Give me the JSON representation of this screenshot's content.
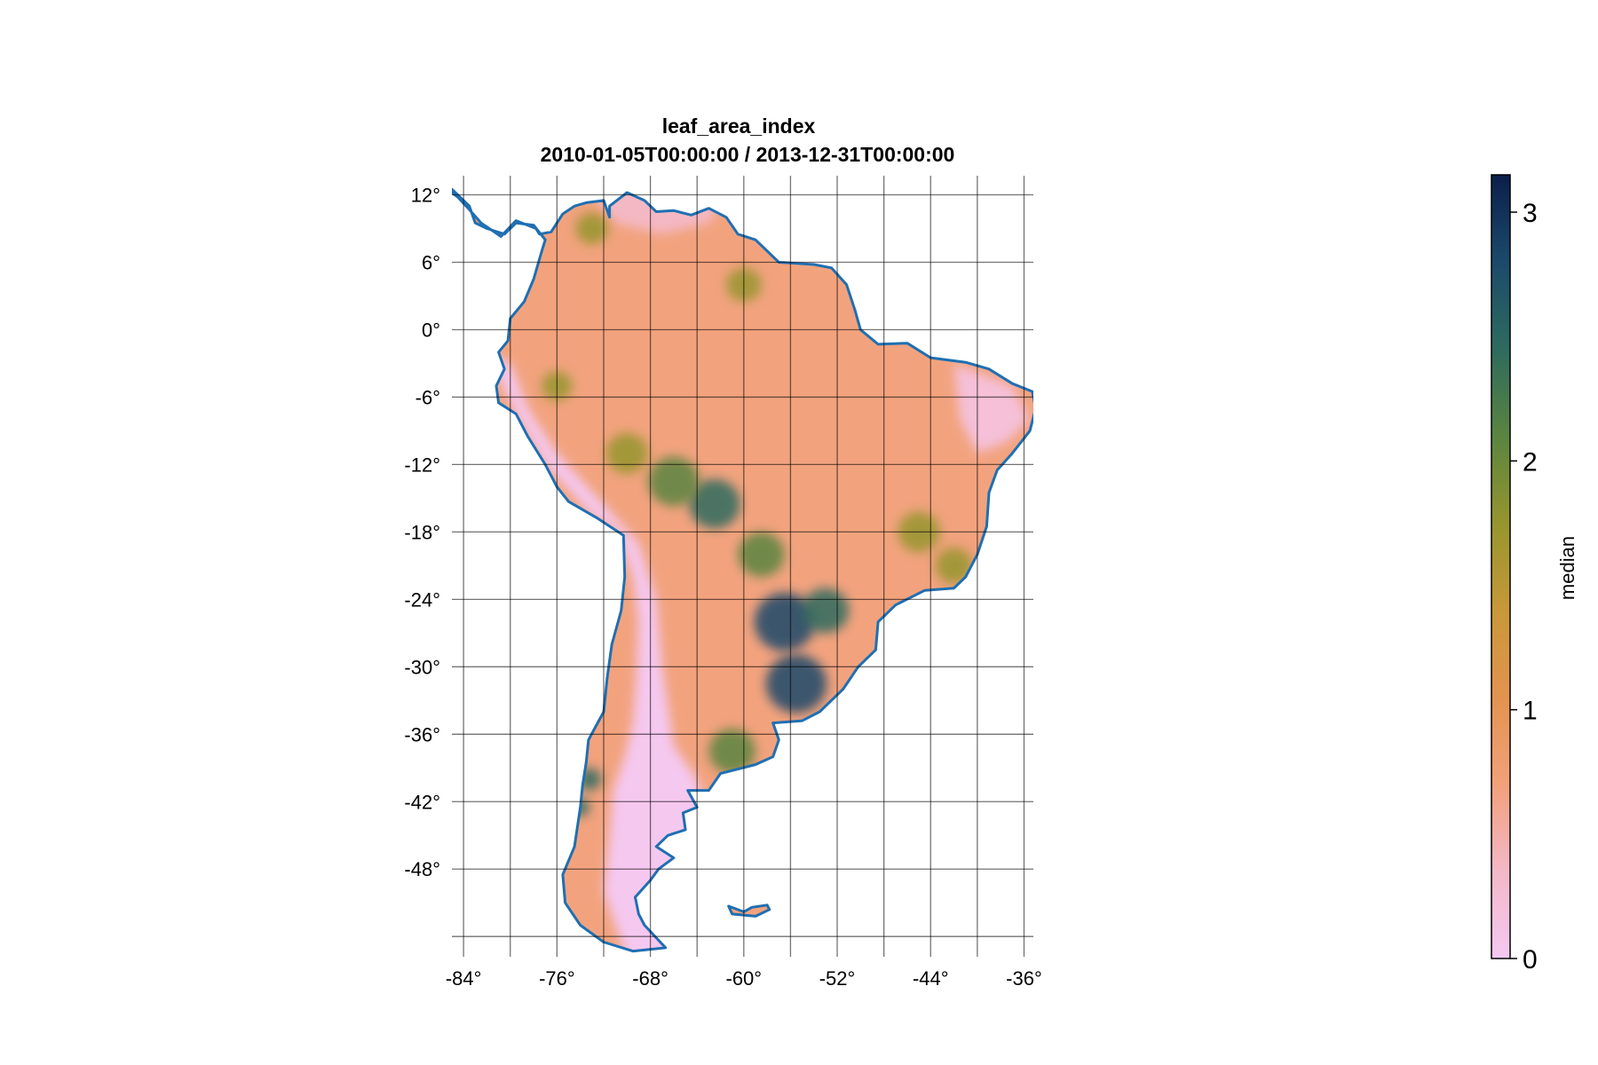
{
  "chart_data": {
    "type": "heatmap",
    "title": "leaf_area_index",
    "subtitle": "2010-01-05T00:00:00 / 2013-12-31T00:00:00",
    "x_tick_labels": [
      "-84°",
      "-76°",
      "-68°",
      "-60°",
      "-52°",
      "-44°",
      "-36°"
    ],
    "x_ticks": [
      -84,
      -80,
      -76,
      -72,
      -68,
      -64,
      -60,
      -56,
      -52,
      -48,
      -44,
      -40,
      -36
    ],
    "y_tick_labels": [
      "12°",
      "6°",
      "0°",
      "-6°",
      "-12°",
      "-18°",
      "-24°",
      "-30°",
      "-36°",
      "-42°",
      "-48°"
    ],
    "y_ticks": [
      12,
      6,
      0,
      -6,
      -12,
      -18,
      -24,
      -30,
      -36,
      -42,
      -48,
      -54
    ],
    "xlim": [
      -85,
      -35.2
    ],
    "ylim": [
      -55.8,
      13.7
    ],
    "grid": true,
    "colorbar": {
      "label": "median",
      "range": [
        0,
        3.15
      ],
      "tick_values": [
        0,
        1,
        2,
        3
      ],
      "tick_labels": [
        "0",
        "1",
        "2",
        "3"
      ],
      "colormap": [
        "#f5c8f0",
        "#f3b8c8",
        "#f3a07a",
        "#e3934f",
        "#c89838",
        "#96952e",
        "#5a8440",
        "#2e6b5e",
        "#1b4a6b",
        "#0b1f4a"
      ]
    },
    "land_base_color": "#f2a37e",
    "dry_color": "#f5c8f0",
    "coastline_color": "#1f6fb2",
    "coastline": [
      [
        -85,
        12.5
      ],
      [
        -83.5,
        11.0
      ],
      [
        -83.0,
        9.5
      ],
      [
        -82.0,
        9.0
      ],
      [
        -80.5,
        8.5
      ],
      [
        -79.5,
        9.5
      ],
      [
        -78.0,
        9.3
      ],
      [
        -77.0,
        8.0
      ],
      [
        -77.3,
        7.0
      ],
      [
        -78.0,
        4.5
      ],
      [
        -78.8,
        2.5
      ],
      [
        -80.0,
        1.0
      ],
      [
        -80.2,
        -1.0
      ],
      [
        -81.0,
        -2.0
      ],
      [
        -80.5,
        -3.5
      ],
      [
        -81.2,
        -5.0
      ],
      [
        -81.0,
        -6.5
      ],
      [
        -79.5,
        -7.5
      ],
      [
        -78.5,
        -9.5
      ],
      [
        -77.0,
        -12.0
      ],
      [
        -76.0,
        -14.0
      ],
      [
        -75.0,
        -15.3
      ],
      [
        -72.5,
        -16.8
      ],
      [
        -70.3,
        -18.3
      ],
      [
        -70.2,
        -22.0
      ],
      [
        -70.5,
        -25.0
      ],
      [
        -71.3,
        -28.0
      ],
      [
        -71.7,
        -31.0
      ],
      [
        -72.0,
        -34.0
      ],
      [
        -73.3,
        -36.5
      ],
      [
        -73.5,
        -38.5
      ],
      [
        -73.8,
        -40.5
      ],
      [
        -74.0,
        -42.5
      ],
      [
        -74.5,
        -46.0
      ],
      [
        -75.5,
        -48.5
      ],
      [
        -75.3,
        -51.0
      ],
      [
        -74.0,
        -53.0
      ],
      [
        -72.0,
        -54.5
      ],
      [
        -69.5,
        -55.3
      ],
      [
        -66.7,
        -55.0
      ],
      [
        -68.5,
        -53.0
      ],
      [
        -69.0,
        -52.0
      ],
      [
        -69.3,
        -50.5
      ],
      [
        -68.0,
        -49.0
      ],
      [
        -67.3,
        -48.0
      ],
      [
        -66.0,
        -47.0
      ],
      [
        -67.5,
        -46.0
      ],
      [
        -66.5,
        -45.0
      ],
      [
        -65.0,
        -44.5
      ],
      [
        -65.2,
        -43.0
      ],
      [
        -64.0,
        -42.5
      ],
      [
        -64.8,
        -41.0
      ],
      [
        -63.0,
        -41.0
      ],
      [
        -62.0,
        -39.5
      ],
      [
        -59.0,
        -38.7
      ],
      [
        -57.5,
        -38.0
      ],
      [
        -57.0,
        -36.5
      ],
      [
        -57.5,
        -35.0
      ],
      [
        -55.0,
        -34.8
      ],
      [
        -53.5,
        -34.0
      ],
      [
        -51.5,
        -32.0
      ],
      [
        -50.2,
        -30.0
      ],
      [
        -48.7,
        -28.5
      ],
      [
        -48.5,
        -26.0
      ],
      [
        -47.0,
        -24.5
      ],
      [
        -44.5,
        -23.2
      ],
      [
        -42.0,
        -23.0
      ],
      [
        -41.0,
        -22.0
      ],
      [
        -40.0,
        -20.0
      ],
      [
        -39.2,
        -17.5
      ],
      [
        -39.0,
        -14.5
      ],
      [
        -38.3,
        -12.5
      ],
      [
        -37.0,
        -11.0
      ],
      [
        -35.5,
        -9.0
      ],
      [
        -35.0,
        -7.0
      ],
      [
        -35.3,
        -5.5
      ],
      [
        -37.0,
        -4.8
      ],
      [
        -39.0,
        -3.5
      ],
      [
        -41.0,
        -2.9
      ],
      [
        -44.0,
        -2.5
      ],
      [
        -46.0,
        -1.2
      ],
      [
        -48.5,
        -1.3
      ],
      [
        -50.0,
        0.0
      ],
      [
        -50.5,
        1.8
      ],
      [
        -51.2,
        4.0
      ],
      [
        -52.5,
        5.5
      ],
      [
        -54.0,
        5.8
      ],
      [
        -57.0,
        6.0
      ],
      [
        -59.0,
        8.0
      ],
      [
        -60.5,
        8.5
      ],
      [
        -61.5,
        10.0
      ],
      [
        -63.0,
        10.8
      ],
      [
        -64.5,
        10.2
      ],
      [
        -66.0,
        10.6
      ],
      [
        -67.5,
        10.5
      ],
      [
        -68.5,
        11.5
      ],
      [
        -70.0,
        12.2
      ],
      [
        -71.5,
        11.0
      ],
      [
        -71.5,
        10.0
      ],
      [
        -72.0,
        11.5
      ],
      [
        -73.5,
        11.3
      ],
      [
        -74.5,
        11.0
      ],
      [
        -75.5,
        10.3
      ],
      [
        -76.5,
        8.7
      ],
      [
        -77.5,
        8.5
      ],
      [
        -77.8,
        9.0
      ],
      [
        -79.5,
        9.7
      ],
      [
        -80.8,
        8.3
      ],
      [
        -82.5,
        9.5
      ],
      [
        -83.6,
        10.8
      ],
      [
        -84.5,
        11.8
      ],
      [
        -85,
        12.2
      ]
    ],
    "falklands": [
      [
        -61.3,
        -51.3
      ],
      [
        -60.0,
        -51.8
      ],
      [
        -59.3,
        -51.4
      ],
      [
        -58.0,
        -51.2
      ],
      [
        -57.8,
        -51.6
      ],
      [
        -59.0,
        -52.2
      ],
      [
        -61.0,
        -52.0
      ],
      [
        -61.3,
        -51.3
      ]
    ],
    "high_lai_regions": [
      {
        "lon": -62.5,
        "lat": -15.5,
        "r": 2.2,
        "value": 2.6
      },
      {
        "lon": -56.5,
        "lat": -26.0,
        "r": 2.6,
        "value": 2.8
      },
      {
        "lon": -55.5,
        "lat": -31.5,
        "r": 2.6,
        "value": 2.9
      },
      {
        "lon": -53.0,
        "lat": -25.0,
        "r": 2.0,
        "value": 2.5
      },
      {
        "lon": -66.0,
        "lat": -13.5,
        "r": 2.2,
        "value": 2.2
      },
      {
        "lon": -58.5,
        "lat": -20.0,
        "r": 2.0,
        "value": 2.1
      },
      {
        "lon": -61.0,
        "lat": -37.5,
        "r": 2.0,
        "value": 2.0
      },
      {
        "lon": -73.2,
        "lat": -40.0,
        "r": 1.0,
        "value": 2.6
      },
      {
        "lon": -74.0,
        "lat": -42.5,
        "r": 0.8,
        "value": 2.4
      },
      {
        "lon": -45.0,
        "lat": -18.0,
        "r": 1.8,
        "value": 1.8
      },
      {
        "lon": -42.0,
        "lat": -21.0,
        "r": 1.6,
        "value": 1.6
      },
      {
        "lon": -60.0,
        "lat": 4.0,
        "r": 1.5,
        "value": 1.6
      },
      {
        "lon": -73.0,
        "lat": 9.0,
        "r": 1.4,
        "value": 1.8
      },
      {
        "lon": -76.0,
        "lat": -5.0,
        "r": 1.3,
        "value": 1.7
      },
      {
        "lon": -70.0,
        "lat": -11.0,
        "r": 1.8,
        "value": 1.9
      }
    ]
  }
}
